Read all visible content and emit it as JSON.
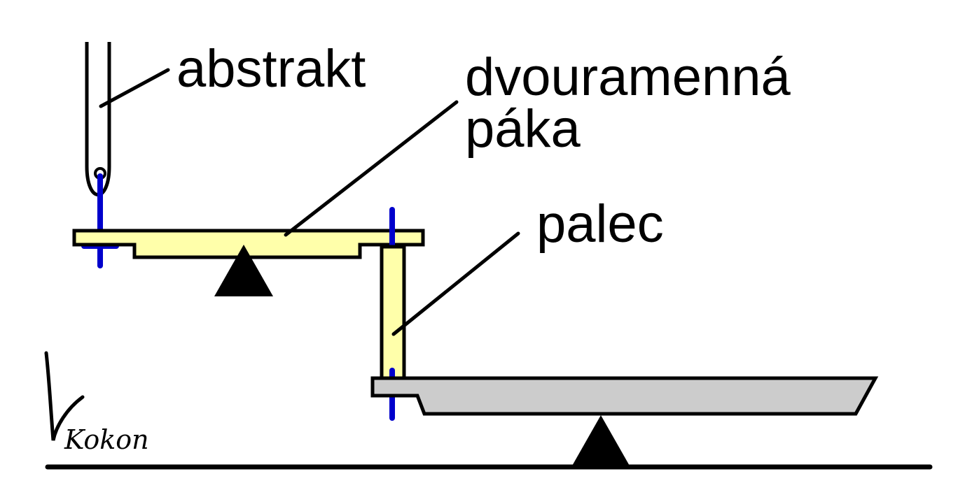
{
  "labels": {
    "abstract": "abstrakt",
    "lever_line1": "dvouramenná",
    "lever_line2": "páka",
    "thumb": "palec"
  },
  "signature": "Kokon",
  "colors": {
    "lever": "#ffffaa",
    "thumb": "#ffffaa",
    "base_lever": "#cccccc",
    "pin": "#0000cc",
    "outline": "#000000",
    "fulcrum": "#000000",
    "background": "#ffffff"
  }
}
